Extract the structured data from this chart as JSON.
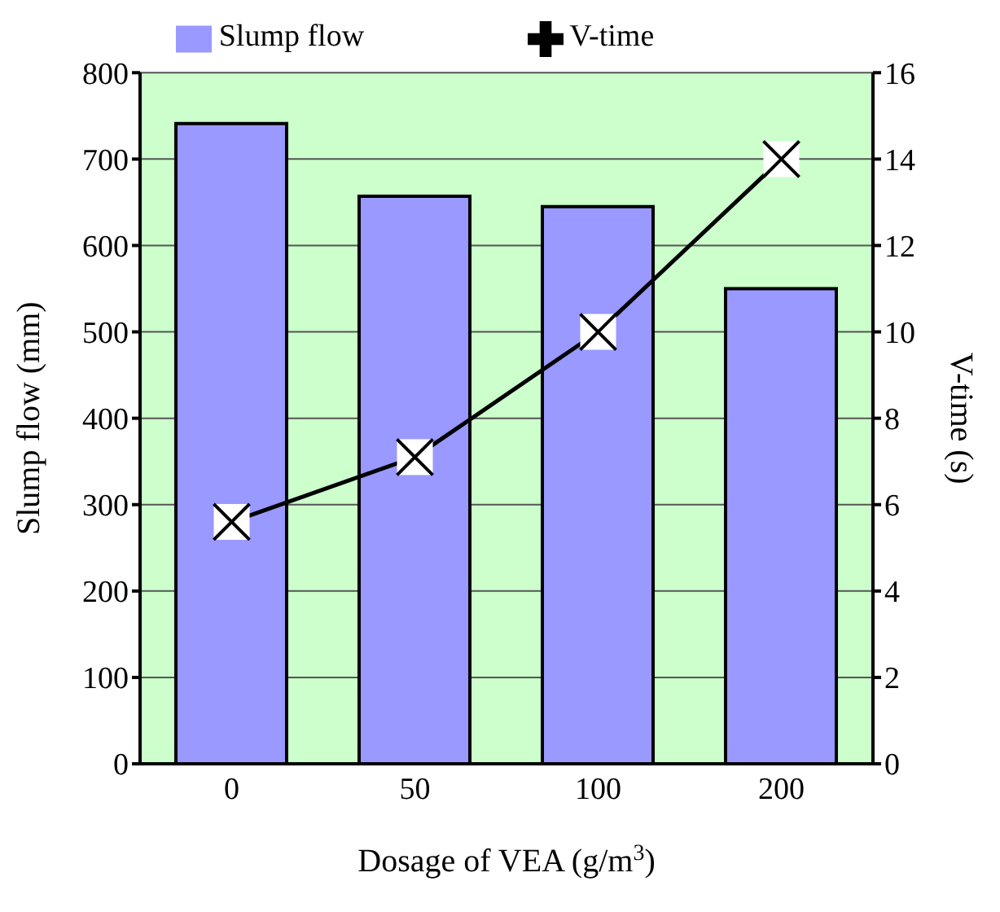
{
  "chart_data": {
    "type": "bar",
    "xlabel": "Dosage of VEA (g/m$^{3}$)",
    "ylabel": "Slump flow (mm)",
    "y2label": "V-time (s)",
    "categories": [
      "0",
      "50",
      "100",
      "200"
    ],
    "series": [
      {
        "name": "Slump flow",
        "color": "#9999ff",
        "values": [
          741,
          657,
          645,
          550
        ]
      },
      {
        "name": "V-time",
        "type": "line",
        "axis": "y2",
        "color": "#000000",
        "marker": "cross",
        "values": [
          5.6,
          7.1,
          10.0,
          14.0
        ]
      }
    ],
    "ylim": [
      0,
      800
    ],
    "yticks": [
      0,
      100,
      200,
      300,
      400,
      500,
      600,
      700,
      800
    ],
    "y2lim": [
      0,
      16
    ],
    "y2ticks": [
      0,
      2,
      4,
      6,
      8,
      10,
      12,
      14,
      16
    ],
    "grid": "y",
    "legend": "top"
  }
}
